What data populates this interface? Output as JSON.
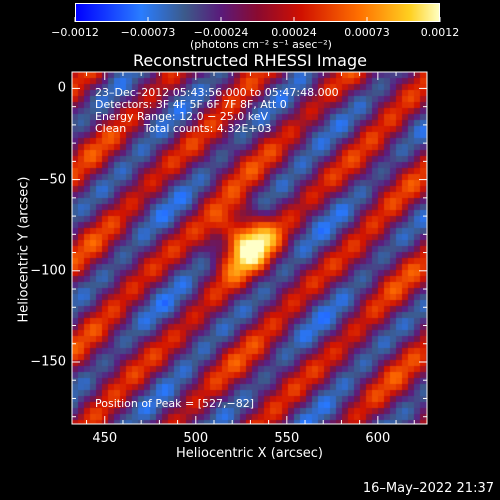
{
  "chart_data": {
    "type": "heatmap",
    "title": "Reconstructed RHESSI Image",
    "xlabel": "Heliocentric X (arcsec)",
    "ylabel": "Heliocentric Y (arcsec)",
    "xlim": [
      432,
      627
    ],
    "ylim": [
      -184,
      9
    ],
    "x_ticks": [
      "450",
      "500",
      "550",
      "600"
    ],
    "y_ticks": [
      "0",
      "−50",
      "−100",
      "−150"
    ],
    "colorbar": {
      "ticks": [
        "−0.0012",
        "−0.00073",
        "−0.00024",
        "0.00024",
        "0.00073",
        "0.0012"
      ],
      "units_text": "(photons cm⁻² s⁻¹ asec⁻²)",
      "range": [
        -0.0012,
        0.0012
      ]
    },
    "annotations": {
      "time": "23–Dec–2012 05:43:56.000 to 05:47:48.000",
      "detectors": "Detectors: 3F 4F 5F 6F 7F 8F, Att 0",
      "energy": "Energy Range: 12.0 − 25.0 keV",
      "method": "Clean     Total counts: 4.32E+03",
      "peak": "Position of Peak = [527,−82]"
    },
    "peak_position": [
      527,
      -82
    ],
    "timestamp": "16–May–2022 21:37"
  }
}
